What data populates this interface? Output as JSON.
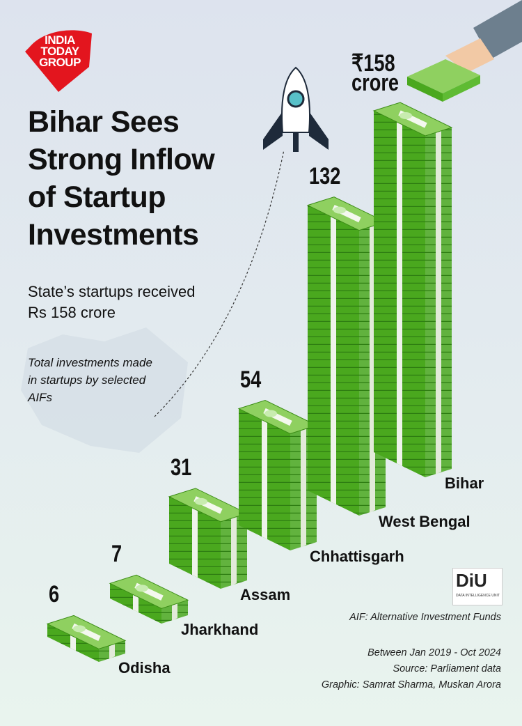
{
  "logo": {
    "lines": [
      "INDIA",
      "TODAY",
      "GROUP"
    ]
  },
  "title": "Bihar Sees Strong Inflow of Startup Investments",
  "subtitle": "State’s startups received Rs 158 crore",
  "note": "Total investments made in startups by selected AIFs",
  "chart_data": {
    "type": "bar",
    "categories": [
      "Odisha",
      "Jharkhand",
      "Assam",
      "Chhattisgarh",
      "West Bengal",
      "Bihar"
    ],
    "values": [
      6,
      7,
      31,
      54,
      132,
      158
    ],
    "value_labels": [
      "6",
      "7",
      "31",
      "54",
      "132",
      "₹158 crore"
    ],
    "color": "#4aa81e"
  },
  "footer": {
    "diu": "DiU",
    "diu_sub": "DATA INTELLIGENCE UNIT",
    "lines": [
      "AIF: Alternative Investment Funds",
      "Between Jan 2019 - Oct 2024",
      "Source: Parliament data",
      "Graphic: Samrat Sharma, Muskan Arora"
    ]
  }
}
